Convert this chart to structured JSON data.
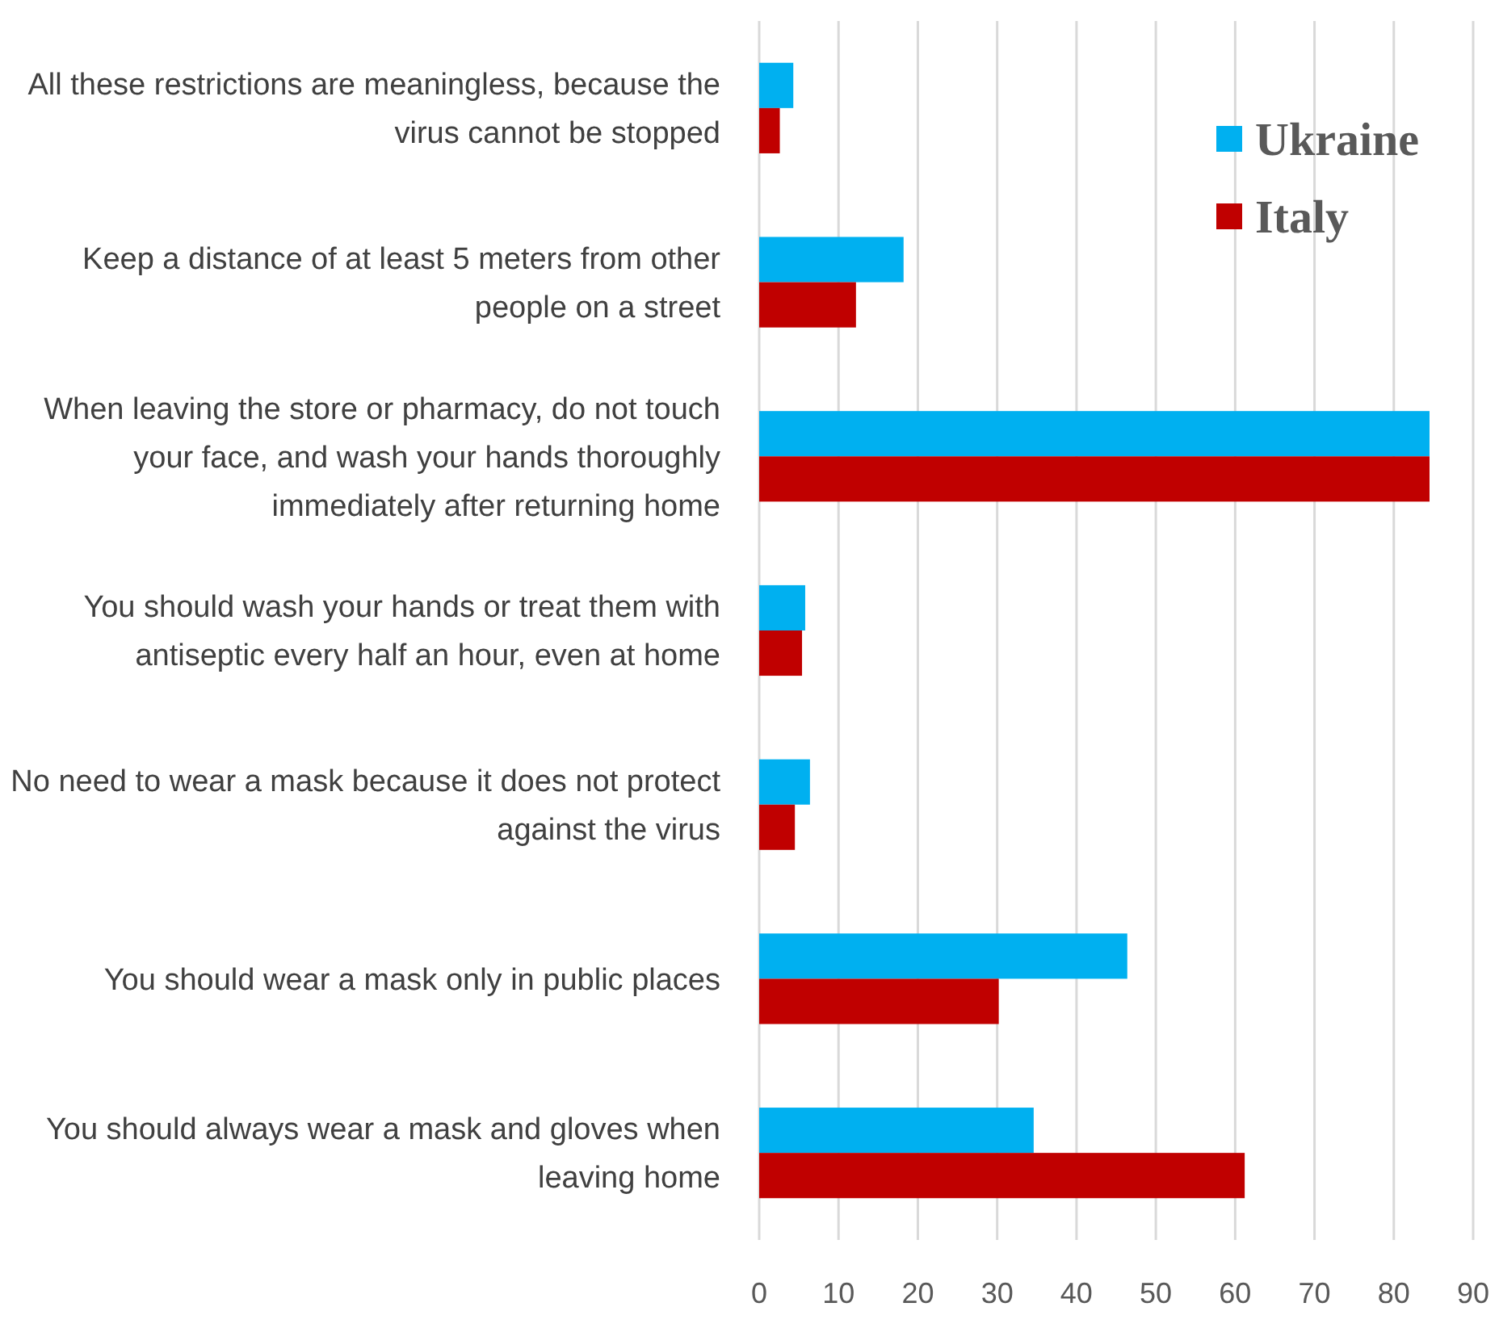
{
  "chart_data": {
    "type": "bar",
    "orientation": "horizontal",
    "categories": [
      "All these restrictions are meaningless, because the virus cannot be stopped",
      "Keep a distance of at least 5 meters from other people on a street",
      "When leaving the store or pharmacy, do not touch your face, and wash your hands thoroughly immediately after returning home",
      "You should wash your hands or treat them with antiseptic every half an hour, even at home",
      "No need to wear a mask because it does not protect against the virus",
      "You should wear a mask only in public places",
      "You should always wear a mask and gloves when leaving home"
    ],
    "series": [
      {
        "name": "Ukraine",
        "color": "#00b0f0",
        "values": [
          4.3,
          18.2,
          84.5,
          5.8,
          6.4,
          46.4,
          34.6
        ]
      },
      {
        "name": "Italy",
        "color": "#c00000",
        "values": [
          2.6,
          12.2,
          84.5,
          5.4,
          4.5,
          30.2,
          61.2
        ]
      }
    ],
    "xlim": [
      0,
      90
    ],
    "xticks": [
      0,
      10,
      20,
      30,
      40,
      50,
      60,
      70,
      80,
      90
    ],
    "grid": "x",
    "legend": "top right"
  }
}
